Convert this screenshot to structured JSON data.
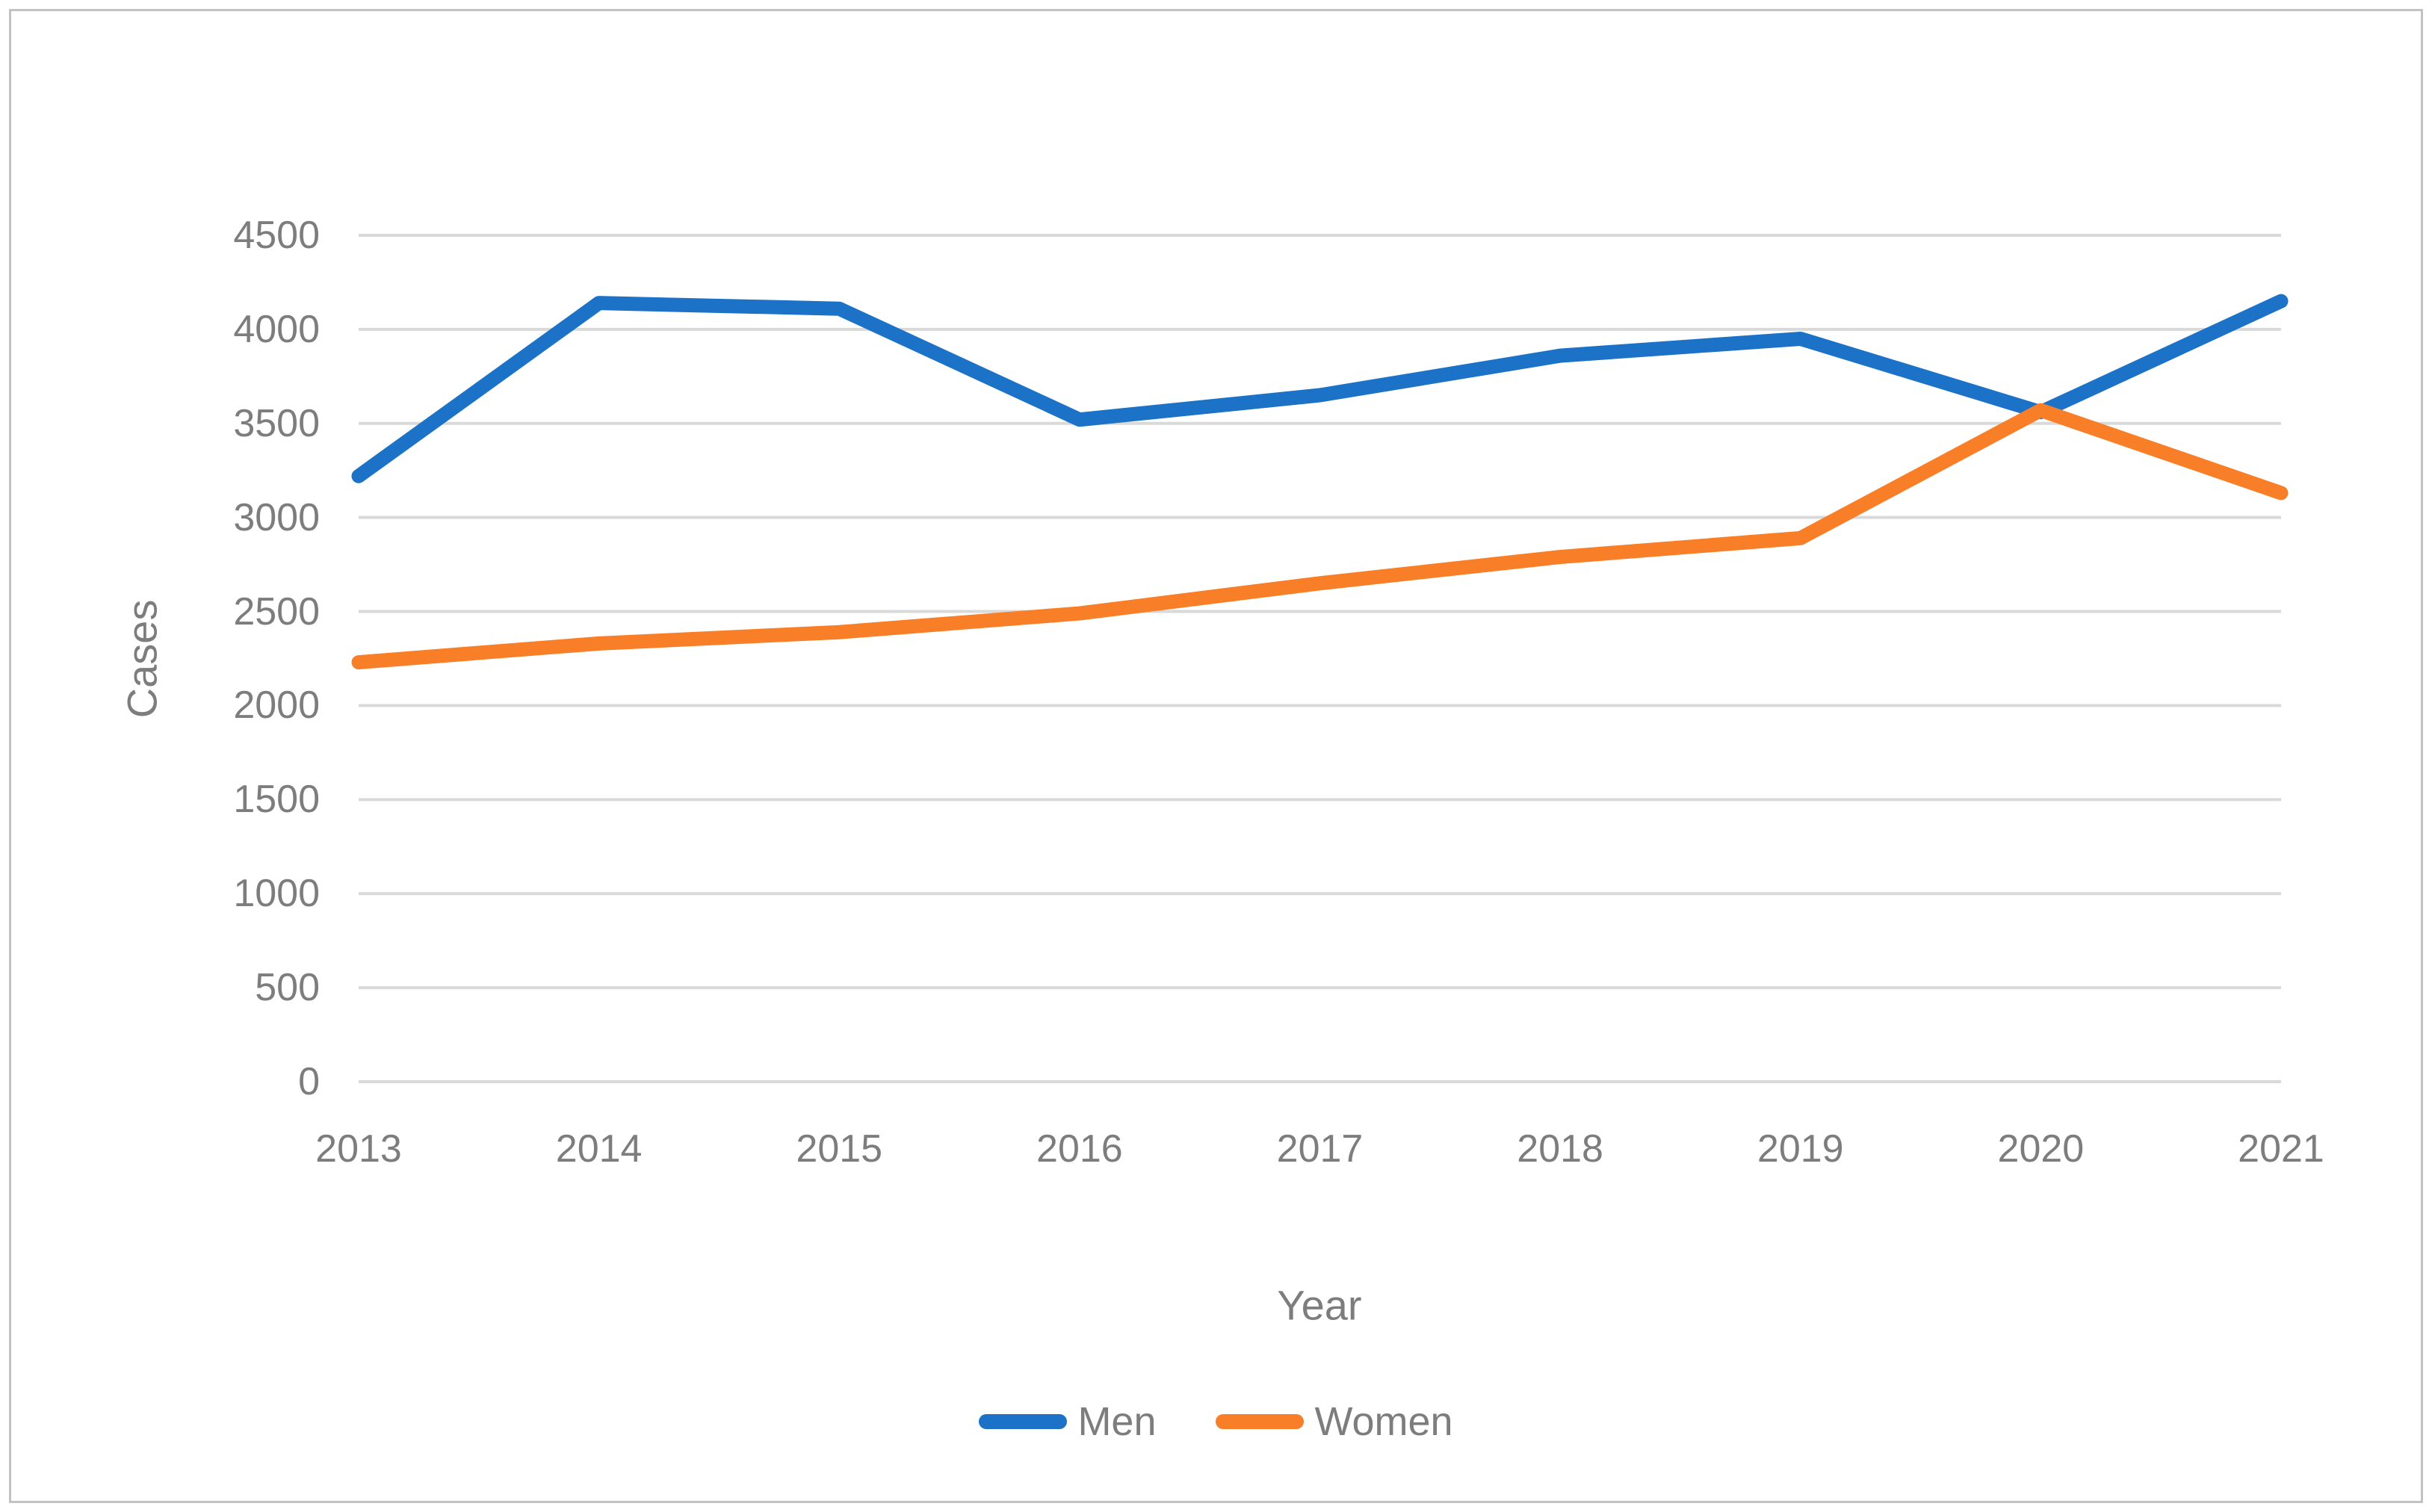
{
  "figure": {
    "background_color": "#ffffff",
    "border_color": "#c3c3c3"
  },
  "chart_data": {
    "type": "line",
    "title": "",
    "xlabel": "Year",
    "ylabel": "Cases",
    "categories": [
      "2013",
      "2014",
      "2015",
      "2016",
      "2017",
      "2018",
      "2019",
      "2020",
      "2021"
    ],
    "series": [
      {
        "name": "Men",
        "color": "#1b72c6",
        "values": [
          3220,
          4140,
          4110,
          3520,
          3650,
          3860,
          3950,
          3560,
          4150
        ]
      },
      {
        "name": "Women",
        "color": "#f87e28",
        "values": [
          2230,
          2330,
          2390,
          2490,
          2650,
          2790,
          2890,
          3570,
          3130
        ]
      }
    ],
    "ylim": [
      0,
      4500
    ],
    "ytick_step": 500,
    "ytick_labels": [
      "0",
      "500",
      "1000",
      "1500",
      "2000",
      "2500",
      "3000",
      "3500",
      "4000",
      "4500"
    ],
    "grid": "horizontal",
    "gridline_color": "#d9d9d9",
    "tick_label_color": "#7d7d7d",
    "axis_title_color": "#7d7d7d",
    "legend_position": "bottom",
    "legend_entries": [
      "Men",
      "Women"
    ]
  }
}
